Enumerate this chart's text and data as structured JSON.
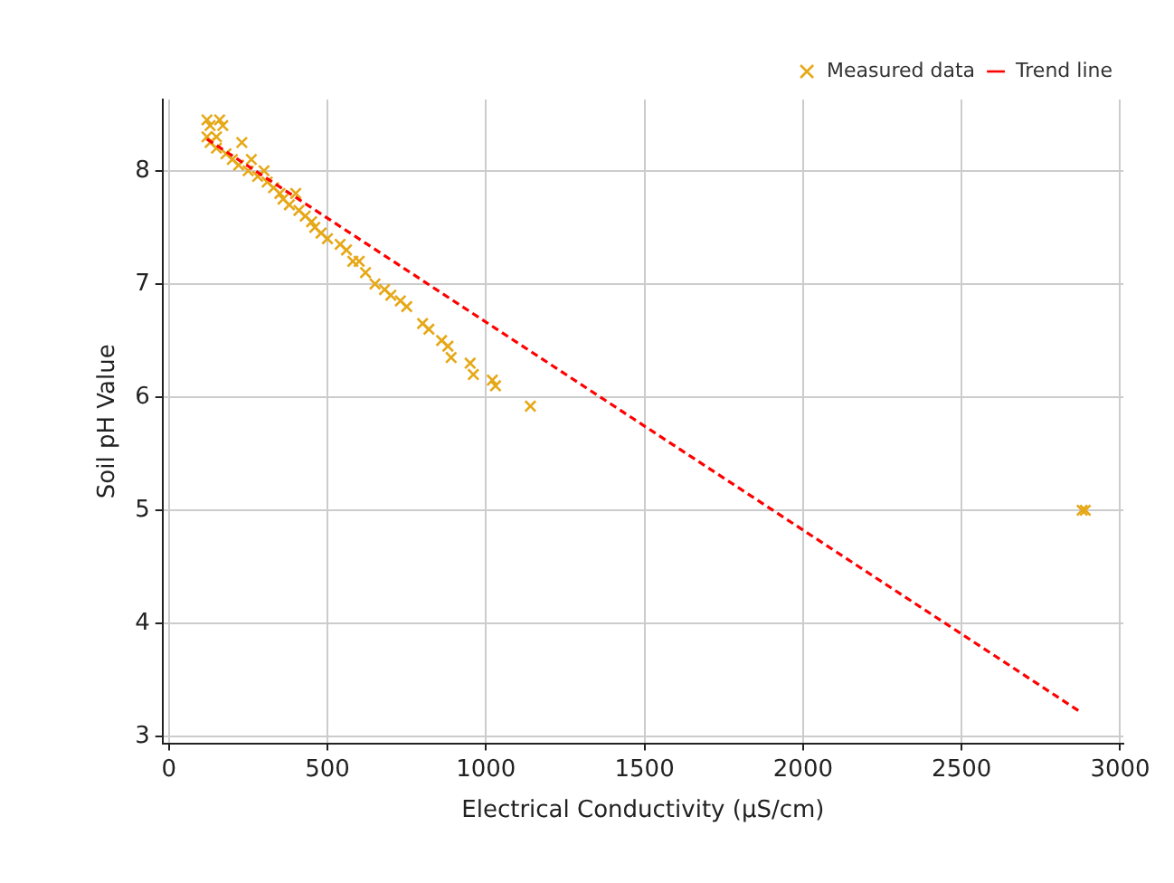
{
  "chart_data": {
    "type": "scatter",
    "xlabel": "Electrical Conductivity (µS/cm)",
    "ylabel": "Soil pH Value",
    "xlim": [
      -20,
      3010
    ],
    "ylim": [
      2.94,
      8.63
    ],
    "xticks": [
      0,
      500,
      1000,
      1500,
      2000,
      2500,
      3000
    ],
    "yticks": [
      3,
      4,
      5,
      6,
      7,
      8
    ],
    "grid": true,
    "legend": "top right",
    "series": [
      {
        "name": "Measured data",
        "type": "scatter",
        "color": "#e6a817",
        "marker": "cross",
        "x": [
          120,
          120,
          130,
          140,
          150,
          160,
          170,
          130,
          150,
          180,
          200,
          220,
          230,
          250,
          260,
          280,
          300,
          310,
          330,
          350,
          360,
          380,
          400,
          410,
          430,
          450,
          460,
          480,
          500,
          540,
          560,
          580,
          600,
          620,
          650,
          680,
          700,
          730,
          750,
          800,
          820,
          860,
          880,
          890,
          950,
          960,
          1020,
          1030,
          1140,
          2880,
          2890
        ],
        "values": [
          8.45,
          8.3,
          8.4,
          null,
          8.3,
          8.45,
          8.4,
          8.25,
          8.2,
          8.15,
          8.1,
          8.05,
          8.25,
          8.0,
          8.1,
          7.95,
          8.0,
          7.9,
          7.85,
          7.8,
          7.75,
          7.7,
          7.8,
          7.65,
          7.6,
          7.55,
          7.5,
          7.45,
          7.4,
          7.35,
          7.3,
          7.2,
          7.2,
          7.1,
          7.0,
          6.95,
          6.9,
          6.85,
          6.8,
          6.65,
          6.6,
          6.5,
          6.45,
          6.35,
          6.3,
          6.2,
          6.15,
          6.1,
          5.92,
          5.0,
          5.0
        ]
      },
      {
        "name": "Trend line",
        "type": "line",
        "color": "#ff0000",
        "line_style": "dashed",
        "marker": "none",
        "x": [
          120,
          2873
        ],
        "values": [
          8.28,
          3.22
        ]
      }
    ]
  }
}
